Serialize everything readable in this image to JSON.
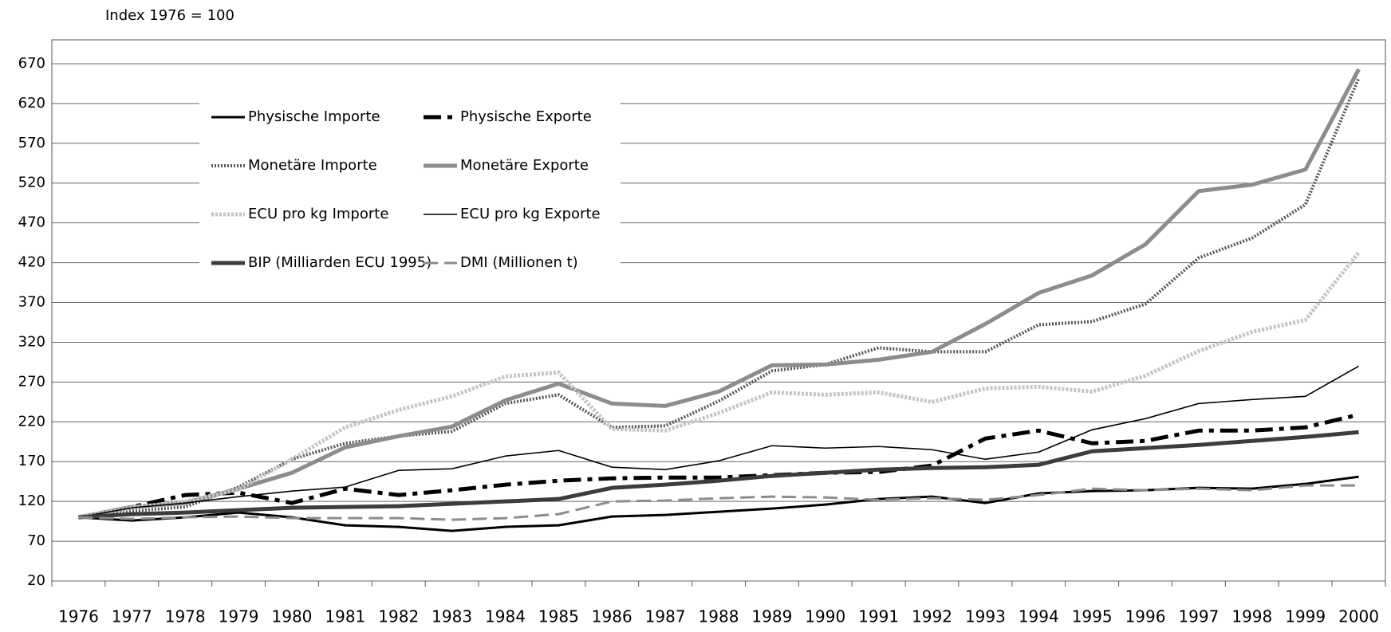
{
  "chart_data": {
    "type": "line",
    "title": "Index 1976 = 100",
    "categories": [
      "1976",
      "1977",
      "1978",
      "1979",
      "1980",
      "1981",
      "1982",
      "1983",
      "1984",
      "1985",
      "1986",
      "1987",
      "1988",
      "1989",
      "1990",
      "1991",
      "1992",
      "1993",
      "1994",
      "1995",
      "1996",
      "1997",
      "1998",
      "1999",
      "2000"
    ],
    "ylim": [
      20,
      700
    ],
    "yticks": [
      20,
      70,
      120,
      170,
      220,
      270,
      320,
      370,
      420,
      470,
      520,
      570,
      620,
      670
    ],
    "grid": true,
    "legend": "upper left",
    "series": [
      {
        "name": "Physische Importe",
        "color": "#000000",
        "values": [
          100,
          96,
          100,
          106,
          100,
          90,
          88,
          83,
          88,
          90,
          101,
          103,
          107,
          111,
          116,
          123,
          126,
          118,
          130,
          133,
          134,
          137,
          136,
          142,
          151
        ]
      },
      {
        "name": "Physische Exporte",
        "color": "#000000",
        "values": [
          100,
          113,
          128,
          131,
          118,
          136,
          128,
          134,
          141,
          146,
          149,
          150,
          150,
          153,
          156,
          157,
          165,
          199,
          209,
          193,
          196,
          209,
          209,
          213,
          229
        ]
      },
      {
        "name": "Monetäre Importe",
        "color": "#555555",
        "values": [
          100,
          108,
          113,
          138,
          173,
          193,
          202,
          208,
          243,
          254,
          213,
          215,
          246,
          284,
          292,
          313,
          308,
          308,
          342,
          346,
          368,
          426,
          451,
          493,
          652
        ]
      },
      {
        "name": "Monetäre Exporte",
        "color": "#8c8c8c",
        "values": [
          100,
          113,
          118,
          136,
          156,
          188,
          202,
          214,
          247,
          268,
          243,
          240,
          258,
          291,
          292,
          298,
          308,
          343,
          382,
          404,
          443,
          510,
          518,
          537,
          663
        ]
      },
      {
        "name": "ECU pro kg Importe",
        "color": "#c4c4c4",
        "values": [
          100,
          112,
          120,
          135,
          173,
          213,
          235,
          252,
          277,
          282,
          211,
          209,
          231,
          257,
          254,
          257,
          245,
          262,
          264,
          258,
          278,
          309,
          333,
          348,
          433
        ]
      },
      {
        "name": "ECU pro kg Exporte",
        "color": "#000000",
        "values": [
          100,
          112,
          118,
          126,
          133,
          138,
          159,
          161,
          177,
          184,
          163,
          160,
          171,
          190,
          187,
          189,
          185,
          173,
          182,
          210,
          224,
          243,
          248,
          252,
          290
        ]
      },
      {
        "name": "BIP (Milliarden ECU 1995)",
        "color": "#3c3c3c",
        "values": [
          100,
          104,
          106,
          109,
          112,
          113,
          114,
          117,
          120,
          123,
          137,
          141,
          146,
          152,
          156,
          160,
          162,
          163,
          166,
          183,
          187,
          191,
          196,
          201,
          207
        ]
      },
      {
        "name": "DMI (Millionen t)",
        "color": "#8c8c8c",
        "values": [
          100,
          98,
          100,
          101,
          99,
          99,
          99,
          97,
          99,
          104,
          120,
          121,
          124,
          126,
          125,
          122,
          124,
          122,
          128,
          136,
          134,
          136,
          134,
          140,
          140
        ]
      }
    ]
  }
}
